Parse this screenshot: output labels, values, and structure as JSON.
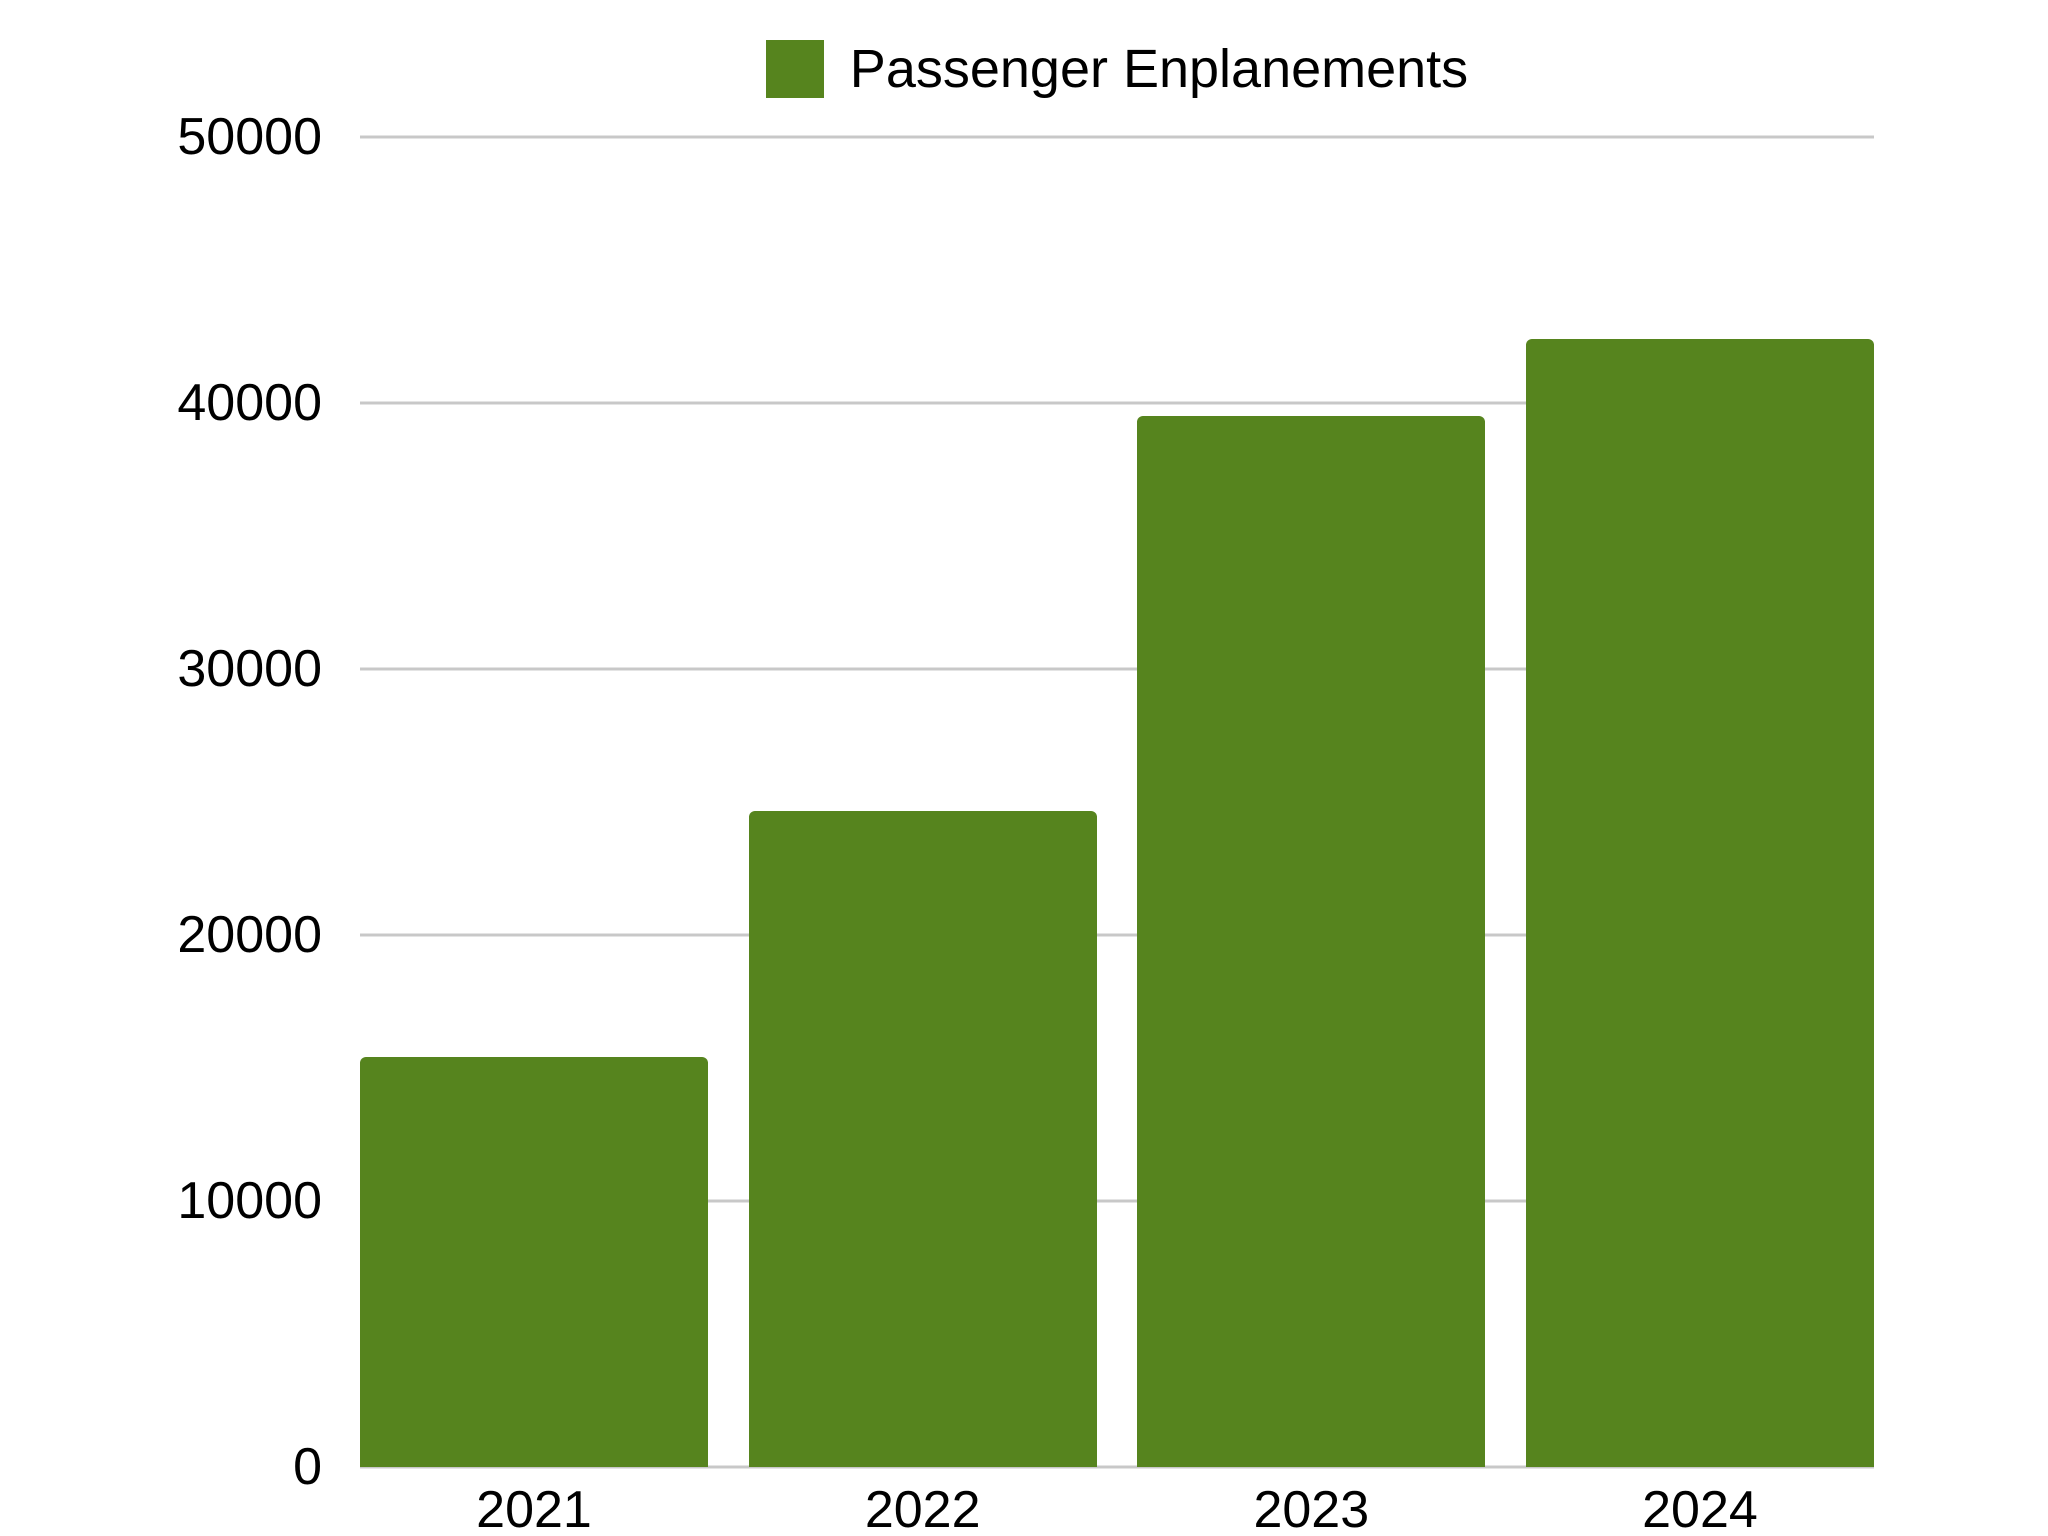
{
  "chart_data": {
    "type": "bar",
    "categories": [
      "2021",
      "2022",
      "2023",
      "2024"
    ],
    "series": [
      {
        "name": "Passenger Enplanements",
        "values": [
          15400,
          24650,
          39500,
          42400
        ]
      }
    ],
    "ylim": [
      0,
      50000
    ],
    "ytick_step": 10000,
    "ytick_labels": [
      "0",
      "10000",
      "20000",
      "30000",
      "40000",
      "50000"
    ],
    "grid": true,
    "legend_position": "top-center",
    "bar_color": "#56841e",
    "gridline_color": "#c8c8c8",
    "text_color": "#000000",
    "background_color": "#ffffff"
  },
  "legend": {
    "label": "Passenger Enplanements",
    "swatch_color": "#56841e"
  }
}
